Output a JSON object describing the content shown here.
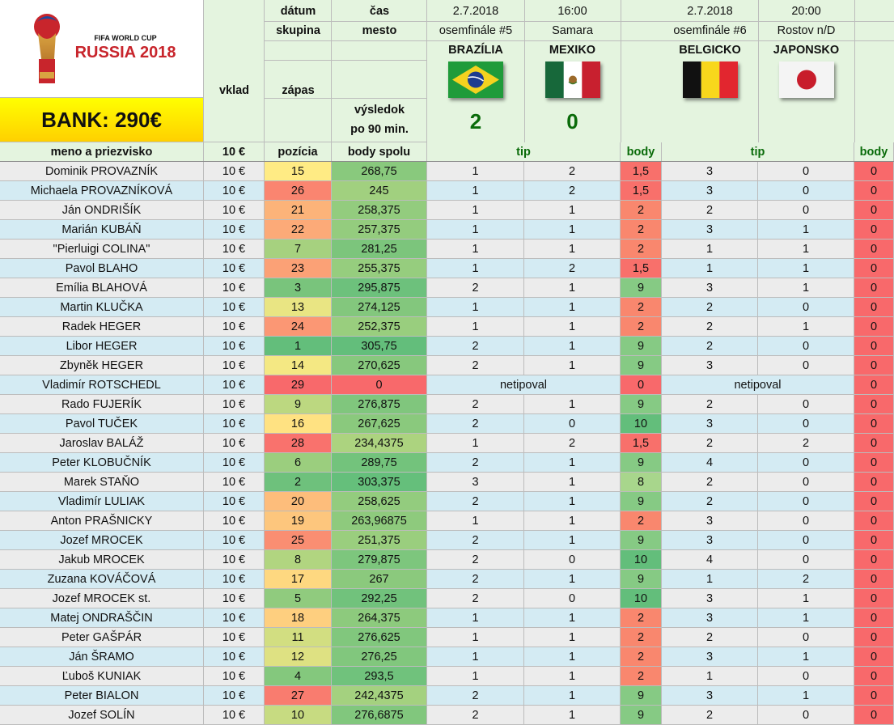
{
  "header": {
    "date_label": "dátum",
    "time_label": "čas",
    "group_label": "skupina",
    "city_label": "mesto",
    "stake_label": "vklad",
    "match_label": "zápas",
    "result_label_1": "výsledok",
    "result_label_2": "po 90 min.",
    "name_label": "meno a priezvisko",
    "stake_value": "10 €",
    "position_label": "pozícia",
    "total_label": "body spolu",
    "tip_label": "tip",
    "points_label": "body"
  },
  "bank": "BANK: 290€",
  "logo": {
    "line1": "FIFA WORLD CUP",
    "line2": "RUSSIA 2018"
  },
  "matches": [
    {
      "date": "2.7.2018",
      "time": "16:00",
      "stage": "osemfinále #5",
      "city": "Samara",
      "team1": "BRAZÍLIA",
      "team2": "MEXIKO",
      "flag1": "brazil-flag",
      "flag2": "mexico-flag",
      "score1": "2",
      "score2": "0"
    },
    {
      "date": "2.7.2018",
      "time": "20:00",
      "stage": "osemfinále #6",
      "city": "Rostov n/D",
      "team1": "BELGICKO",
      "team2": "JAPONSKO",
      "flag1": "belgium-flag",
      "flag2": "japan-flag",
      "score1": "",
      "score2": ""
    }
  ],
  "colors": {
    "zebra_gray": "#ececec",
    "zebra_blue": "#d4ebf3",
    "header_green": "#e4f4df",
    "points_green_text": "#0a6b0a",
    "bank_yellow": "#ffff00",
    "zero_red": "#f8696b"
  },
  "rows": [
    {
      "name": "Dominik PROVAZNÍK",
      "stake": "10 €",
      "pos": "15",
      "total": "268,75",
      "m1": [
        "1",
        "2"
      ],
      "p1": "1,5",
      "m2": [
        "3",
        "0"
      ],
      "p2": "0"
    },
    {
      "name": "Michaela PROVAZNÍKOVÁ",
      "stake": "10 €",
      "pos": "26",
      "total": "245",
      "m1": [
        "1",
        "2"
      ],
      "p1": "1,5",
      "m2": [
        "3",
        "0"
      ],
      "p2": "0"
    },
    {
      "name": "Ján ONDRIŠÍK",
      "stake": "10 €",
      "pos": "21",
      "total": "258,375",
      "m1": [
        "1",
        "1"
      ],
      "p1": "2",
      "m2": [
        "2",
        "0"
      ],
      "p2": "0"
    },
    {
      "name": "Marián KUBÁŇ",
      "stake": "10 €",
      "pos": "22",
      "total": "257,375",
      "m1": [
        "1",
        "1"
      ],
      "p1": "2",
      "m2": [
        "3",
        "1"
      ],
      "p2": "0"
    },
    {
      "name": "\"Pierluigi COLINA\"",
      "stake": "10 €",
      "pos": "7",
      "total": "281,25",
      "m1": [
        "1",
        "1"
      ],
      "p1": "2",
      "m2": [
        "1",
        "1"
      ],
      "p2": "0"
    },
    {
      "name": "Pavol BLAHO",
      "stake": "10 €",
      "pos": "23",
      "total": "255,375",
      "m1": [
        "1",
        "2"
      ],
      "p1": "1,5",
      "m2": [
        "1",
        "1"
      ],
      "p2": "0"
    },
    {
      "name": "Emília BLAHOVÁ",
      "stake": "10 €",
      "pos": "3",
      "total": "295,875",
      "m1": [
        "2",
        "1"
      ],
      "p1": "9",
      "m2": [
        "3",
        "1"
      ],
      "p2": "0"
    },
    {
      "name": "Martin KLUČKA",
      "stake": "10 €",
      "pos": "13",
      "total": "274,125",
      "m1": [
        "1",
        "1"
      ],
      "p1": "2",
      "m2": [
        "2",
        "0"
      ],
      "p2": "0"
    },
    {
      "name": "Radek HEGER",
      "stake": "10 €",
      "pos": "24",
      "total": "252,375",
      "m1": [
        "1",
        "1"
      ],
      "p1": "2",
      "m2": [
        "2",
        "1"
      ],
      "p2": "0"
    },
    {
      "name": "Libor HEGER",
      "stake": "10 €",
      "pos": "1",
      "total": "305,75",
      "m1": [
        "2",
        "1"
      ],
      "p1": "9",
      "m2": [
        "2",
        "0"
      ],
      "p2": "0"
    },
    {
      "name": "Zbyněk HEGER",
      "stake": "10 €",
      "pos": "14",
      "total": "270,625",
      "m1": [
        "2",
        "1"
      ],
      "p1": "9",
      "m2": [
        "3",
        "0"
      ],
      "p2": "0"
    },
    {
      "name": "Vladimír ROTSCHEDL",
      "stake": "10 €",
      "pos": "29",
      "total": "0",
      "note1": "netipoval",
      "p1": "0",
      "note2": "netipoval",
      "p2": "0"
    },
    {
      "name": "Rado FUJERÍK",
      "stake": "10 €",
      "pos": "9",
      "total": "276,875",
      "m1": [
        "2",
        "1"
      ],
      "p1": "9",
      "m2": [
        "2",
        "0"
      ],
      "p2": "0"
    },
    {
      "name": "Pavol TUČEK",
      "stake": "10 €",
      "pos": "16",
      "total": "267,625",
      "m1": [
        "2",
        "0"
      ],
      "p1": "10",
      "m2": [
        "3",
        "0"
      ],
      "p2": "0"
    },
    {
      "name": "Jaroslav BALÁŽ",
      "stake": "10 €",
      "pos": "28",
      "total": "234,4375",
      "m1": [
        "1",
        "2"
      ],
      "p1": "1,5",
      "m2": [
        "2",
        "2"
      ],
      "p2": "0"
    },
    {
      "name": "Peter KLOBUČNÍK",
      "stake": "10 €",
      "pos": "6",
      "total": "289,75",
      "m1": [
        "2",
        "1"
      ],
      "p1": "9",
      "m2": [
        "4",
        "0"
      ],
      "p2": "0"
    },
    {
      "name": "Marek STAŇO",
      "stake": "10 €",
      "pos": "2",
      "total": "303,375",
      "m1": [
        "3",
        "1"
      ],
      "p1": "8",
      "m2": [
        "2",
        "0"
      ],
      "p2": "0"
    },
    {
      "name": "Vladimír LULIAK",
      "stake": "10 €",
      "pos": "20",
      "total": "258,625",
      "m1": [
        "2",
        "1"
      ],
      "p1": "9",
      "m2": [
        "2",
        "0"
      ],
      "p2": "0"
    },
    {
      "name": "Anton PRAŠNICKY",
      "stake": "10 €",
      "pos": "19",
      "total": "263,96875",
      "m1": [
        "1",
        "1"
      ],
      "p1": "2",
      "m2": [
        "3",
        "0"
      ],
      "p2": "0"
    },
    {
      "name": "Jozef MROCEK",
      "stake": "10 €",
      "pos": "25",
      "total": "251,375",
      "m1": [
        "2",
        "1"
      ],
      "p1": "9",
      "m2": [
        "3",
        "0"
      ],
      "p2": "0"
    },
    {
      "name": "Jakub MROCEK",
      "stake": "10 €",
      "pos": "8",
      "total": "279,875",
      "m1": [
        "2",
        "0"
      ],
      "p1": "10",
      "m2": [
        "4",
        "0"
      ],
      "p2": "0"
    },
    {
      "name": "Zuzana KOVÁČOVÁ",
      "stake": "10 €",
      "pos": "17",
      "total": "267",
      "m1": [
        "2",
        "1"
      ],
      "p1": "9",
      "m2": [
        "1",
        "2"
      ],
      "p2": "0"
    },
    {
      "name": "Jozef MROCEK st.",
      "stake": "10 €",
      "pos": "5",
      "total": "292,25",
      "m1": [
        "2",
        "0"
      ],
      "p1": "10",
      "m2": [
        "3",
        "1"
      ],
      "p2": "0"
    },
    {
      "name": "Matej ONDRAŠČIN",
      "stake": "10 €",
      "pos": "18",
      "total": "264,375",
      "m1": [
        "1",
        "1"
      ],
      "p1": "2",
      "m2": [
        "3",
        "1"
      ],
      "p2": "0"
    },
    {
      "name": "Peter GAŠPÁR",
      "stake": "10 €",
      "pos": "11",
      "total": "276,625",
      "m1": [
        "1",
        "1"
      ],
      "p1": "2",
      "m2": [
        "2",
        "0"
      ],
      "p2": "0"
    },
    {
      "name": "Ján ŠRAMO",
      "stake": "10 €",
      "pos": "12",
      "total": "276,25",
      "m1": [
        "1",
        "1"
      ],
      "p1": "2",
      "m2": [
        "3",
        "1"
      ],
      "p2": "0"
    },
    {
      "name": "Ľuboš KUNIAK",
      "stake": "10 €",
      "pos": "4",
      "total": "293,5",
      "m1": [
        "1",
        "1"
      ],
      "p1": "2",
      "m2": [
        "1",
        "0"
      ],
      "p2": "0"
    },
    {
      "name": "Peter BIALON",
      "stake": "10 €",
      "pos": "27",
      "total": "242,4375",
      "m1": [
        "2",
        "1"
      ],
      "p1": "9",
      "m2": [
        "3",
        "1"
      ],
      "p2": "0"
    },
    {
      "name": "Jozef SOLÍN",
      "stake": "10 €",
      "pos": "10",
      "total": "276,6875",
      "m1": [
        "2",
        "1"
      ],
      "p1": "9",
      "m2": [
        "2",
        "0"
      ],
      "p2": "0"
    }
  ]
}
